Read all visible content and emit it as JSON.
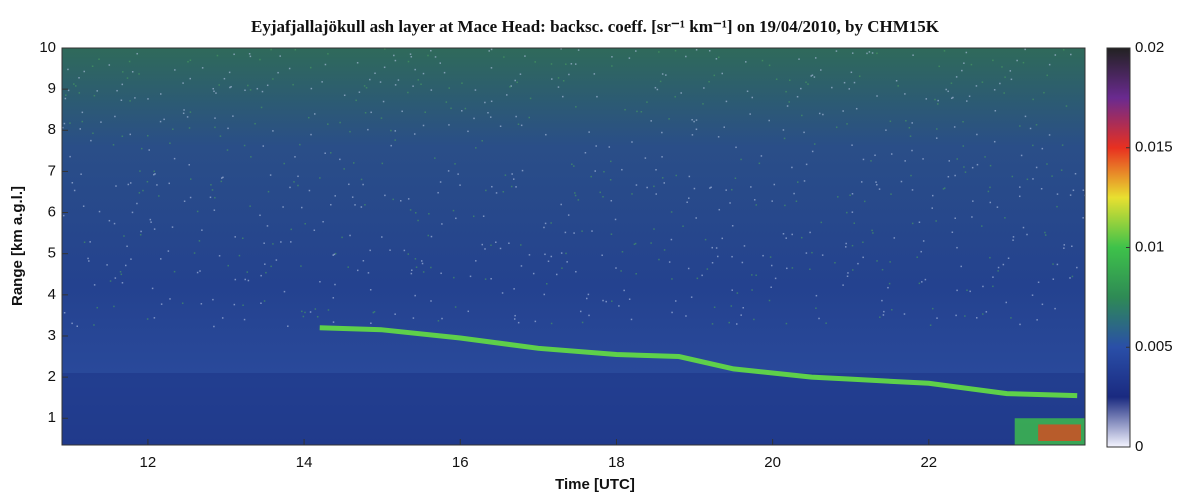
{
  "chart_data": {
    "type": "heatmap",
    "title": "Eyjafjallajökull ash layer at Mace Head: backsc. coeff. [sr⁻¹ km⁻¹] on 19/04/2010, by CHM15K",
    "x_label": "Time [UTC]",
    "y_label": "Range [km a.g.l.]",
    "xlim": [
      10.9,
      24
    ],
    "xticks": [
      12,
      14,
      16,
      18,
      20,
      22
    ],
    "ylim": [
      0.35,
      10
    ],
    "yticks": [
      1,
      2,
      3,
      4,
      5,
      6,
      7,
      8,
      9,
      10
    ],
    "colorbar_lim": [
      0,
      0.02
    ],
    "colorbar_ticks": [
      0,
      0.005,
      0.01,
      0.015,
      0.02
    ],
    "colormap": [
      "#f4f4ff",
      "#1a2a80",
      "#2a4fa8",
      "#2e8a55",
      "#3ec24a",
      "#e8e030",
      "#e83020",
      "#6a2a90",
      "#222222"
    ],
    "series": [
      {
        "color": "#5ed04a",
        "x": [
          14.2,
          15,
          16,
          17,
          18,
          18.8,
          19.5,
          20.5,
          21,
          22,
          23,
          23.9
        ],
        "values": [
          3.2,
          3.15,
          2.95,
          2.7,
          2.55,
          2.5,
          2.2,
          2.0,
          1.95,
          1.85,
          1.6,
          1.55
        ]
      }
    ]
  }
}
